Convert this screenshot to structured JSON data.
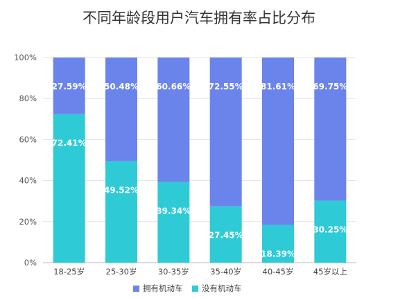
{
  "chart_data": {
    "type": "bar",
    "stacked": true,
    "title": "不同年龄段用户汽车拥有率占比分布",
    "categories": [
      "18-25岁",
      "25-30岁",
      "30-35岁",
      "35-40岁",
      "40-45岁",
      "45岁以上"
    ],
    "series": [
      {
        "name": "没有机动车",
        "color": "#2ECBD6",
        "values": [
          72.41,
          49.52,
          39.34,
          27.45,
          18.39,
          30.25
        ],
        "labels": [
          "72.41%",
          "49.52%",
          "39.34%",
          "27.45%",
          "18.39%",
          "30.25%"
        ]
      },
      {
        "name": "拥有机动车",
        "color": "#6B84EC",
        "values": [
          27.59,
          50.48,
          60.66,
          72.55,
          81.61,
          69.75
        ],
        "labels": [
          "27.59%",
          "50.48%",
          "60.66%",
          "72.55%",
          "81.61%",
          "69.75%"
        ]
      }
    ],
    "y_ticks": [
      "0%",
      "20%",
      "40%",
      "60%",
      "80%",
      "100%"
    ],
    "ylim": [
      0,
      100
    ],
    "grid": true,
    "legend_position": "bottom"
  }
}
